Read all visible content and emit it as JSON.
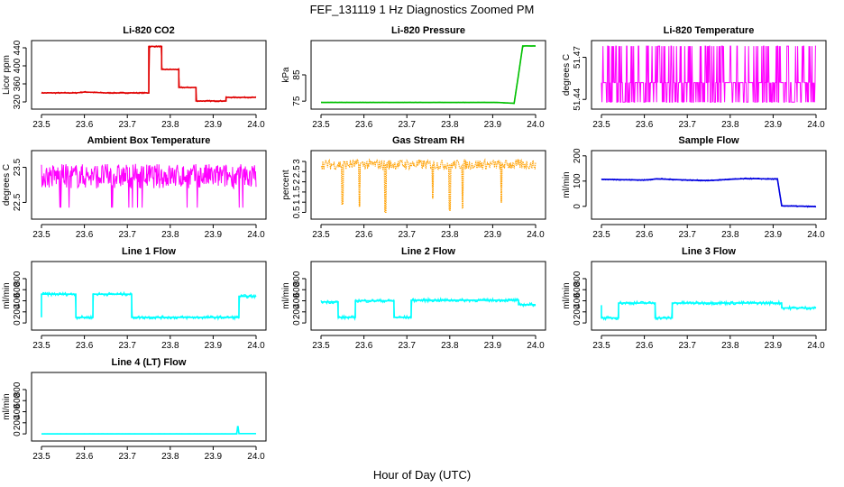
{
  "title": "FEF_131119  1 Hz Diagnostics Zoomed PM",
  "xlabel": "Hour of Day (UTC)",
  "chart_data": [
    {
      "id": "co2",
      "type": "line",
      "title": "Li-820 CO2",
      "ylabel": "Licor ppm",
      "color": "#e00000",
      "xlim": [
        23.5,
        24.0
      ],
      "ylim": [
        310,
        450
      ],
      "yticks": [
        "320",
        "360",
        "400",
        "440"
      ],
      "xticks": [
        "23.5",
        "23.6",
        "23.7",
        "23.8",
        "23.9",
        "24.0"
      ],
      "x": [
        23.5,
        23.58,
        23.6,
        23.65,
        23.75,
        23.75,
        23.78,
        23.78,
        23.82,
        23.82,
        23.86,
        23.86,
        23.93,
        23.93,
        24.0
      ],
      "y": [
        340,
        340,
        342,
        340,
        340,
        443,
        443,
        392,
        392,
        352,
        352,
        322,
        322,
        330,
        330
      ],
      "noise": 1.5
    },
    {
      "id": "pressure",
      "type": "line",
      "title": "Li-820 Pressure",
      "ylabel": "kPa",
      "color": "#00c000",
      "xlim": [
        23.5,
        24.0
      ],
      "ylim": [
        73,
        97
      ],
      "yticks": [
        "75",
        "85"
      ],
      "xticks": [
        "23.5",
        "23.6",
        "23.7",
        "23.8",
        "23.9",
        "24.0"
      ],
      "x": [
        23.5,
        23.91,
        23.95,
        23.96,
        23.97,
        24.0
      ],
      "y": [
        74.5,
        74.5,
        74.2,
        85,
        96,
        96
      ],
      "noise": 0.08
    },
    {
      "id": "temperature",
      "type": "noise-band",
      "title": "Li-820 Temperature",
      "ylabel": "degrees C",
      "color": "#ff00ff",
      "xlim": [
        23.5,
        24.0
      ],
      "ylim": [
        51.435,
        51.48
      ],
      "yticks": [
        "51.44",
        "51.47"
      ],
      "xticks": [
        "23.5",
        "23.6",
        "23.7",
        "23.8",
        "23.9",
        "24.0"
      ],
      "levels": [
        51.438,
        51.452,
        51.478
      ]
    },
    {
      "id": "ambient",
      "type": "noise-band",
      "title": "Ambient Box Temperature",
      "ylabel": "degrees C",
      "color": "#ff00ff",
      "xlim": [
        23.5,
        24.0
      ],
      "ylim": [
        22.1,
        23.9
      ],
      "yticks": [
        "22.5",
        "23.5"
      ],
      "xticks": [
        "23.5",
        "23.6",
        "23.7",
        "23.8",
        "23.9",
        "24.0"
      ],
      "center": 23.25,
      "spread": 0.35,
      "spikeLow": 22.35
    },
    {
      "id": "rh",
      "type": "points",
      "title": "Gas Stream RH",
      "ylabel": "percent",
      "color": "#ffa000",
      "xlim": [
        23.5,
        24.0
      ],
      "ylim": [
        0.3,
        3.4
      ],
      "yticks": [
        "0.5",
        "1",
        "1.5",
        "2",
        "2.5",
        "3"
      ],
      "xticks": [
        "23.5",
        "23.6",
        "23.7",
        "23.8",
        "23.9",
        "24.0"
      ],
      "center": 2.85,
      "spread": 0.25,
      "dips": [
        [
          23.55,
          0.9
        ],
        [
          23.59,
          0.8
        ],
        [
          23.65,
          0.5
        ],
        [
          23.76,
          1.2
        ],
        [
          23.8,
          0.6
        ],
        [
          23.83,
          0.7
        ],
        [
          23.92,
          1.0
        ]
      ]
    },
    {
      "id": "sample",
      "type": "line",
      "title": "Sample Flow",
      "ylabel": "ml/min",
      "color": "#0000e0",
      "xlim": [
        23.5,
        24.0
      ],
      "ylim": [
        -40,
        210
      ],
      "yticks": [
        "0",
        "100",
        "200"
      ],
      "xticks": [
        "23.5",
        "23.6",
        "23.7",
        "23.8",
        "23.9",
        "24.0"
      ],
      "x": [
        23.5,
        23.6,
        23.63,
        23.7,
        23.75,
        23.8,
        23.84,
        23.91,
        23.92,
        24.0
      ],
      "y": [
        107,
        104,
        109,
        104,
        102,
        107,
        110,
        108,
        2,
        -1
      ],
      "noise": 2.5
    },
    {
      "id": "line1",
      "type": "line",
      "title": "Line 1 Flow",
      "ylabel": "ml/min",
      "color": "#00ffff",
      "xlim": [
        23.5,
        24.0
      ],
      "ylim": [
        -80,
        1060
      ],
      "yticks": [
        "0",
        "200",
        "400",
        "600",
        "800"
      ],
      "xticks": [
        "23.5",
        "23.6",
        "23.7",
        "23.8",
        "23.9",
        "24.0"
      ],
      "x": [
        23.5,
        23.5,
        23.58,
        23.58,
        23.62,
        23.62,
        23.71,
        23.71,
        23.96,
        23.96,
        24.0
      ],
      "y": [
        100,
        520,
        520,
        100,
        100,
        520,
        520,
        100,
        100,
        480,
        480
      ],
      "noise": 30
    },
    {
      "id": "line2",
      "type": "line",
      "title": "Line 2 Flow",
      "ylabel": "ml/min",
      "color": "#00ffff",
      "xlim": [
        23.5,
        24.0
      ],
      "ylim": [
        -80,
        1060
      ],
      "yticks": [
        "0",
        "200",
        "400",
        "600",
        "800"
      ],
      "xticks": [
        "23.5",
        "23.6",
        "23.7",
        "23.8",
        "23.9",
        "24.0"
      ],
      "x": [
        23.5,
        23.54,
        23.54,
        23.58,
        23.58,
        23.67,
        23.67,
        23.71,
        23.71,
        23.96,
        23.96,
        24.0
      ],
      "y": [
        380,
        380,
        100,
        100,
        400,
        400,
        100,
        100,
        410,
        410,
        330,
        330
      ],
      "noise": 30
    },
    {
      "id": "line3",
      "type": "line",
      "title": "Line 3 Flow",
      "ylabel": "ml/min",
      "color": "#00ffff",
      "xlim": [
        23.5,
        24.0
      ],
      "ylim": [
        -80,
        1060
      ],
      "yticks": [
        "0",
        "200",
        "400",
        "600",
        "800"
      ],
      "xticks": [
        "23.5",
        "23.6",
        "23.7",
        "23.8",
        "23.9",
        "24.0"
      ],
      "x": [
        23.5,
        23.5,
        23.54,
        23.54,
        23.625,
        23.625,
        23.665,
        23.665,
        23.92,
        23.92,
        24.0
      ],
      "y": [
        320,
        90,
        90,
        360,
        360,
        90,
        90,
        360,
        360,
        270,
        270
      ],
      "noise": 30
    },
    {
      "id": "line4",
      "type": "line",
      "title": "Line 4 (LT) Flow",
      "ylabel": "ml/min",
      "color": "#00ffff",
      "xlim": [
        23.5,
        24.0
      ],
      "ylim": [
        -80,
        1060
      ],
      "yticks": [
        "0",
        "200",
        "400",
        "600",
        "800"
      ],
      "xticks": [
        "23.5",
        "23.6",
        "23.7",
        "23.8",
        "23.9",
        "24.0"
      ],
      "x": [
        23.5,
        23.955,
        23.957,
        23.958,
        23.96,
        24.0
      ],
      "y": [
        0,
        0,
        130,
        130,
        5,
        5
      ],
      "noise": 1
    }
  ]
}
